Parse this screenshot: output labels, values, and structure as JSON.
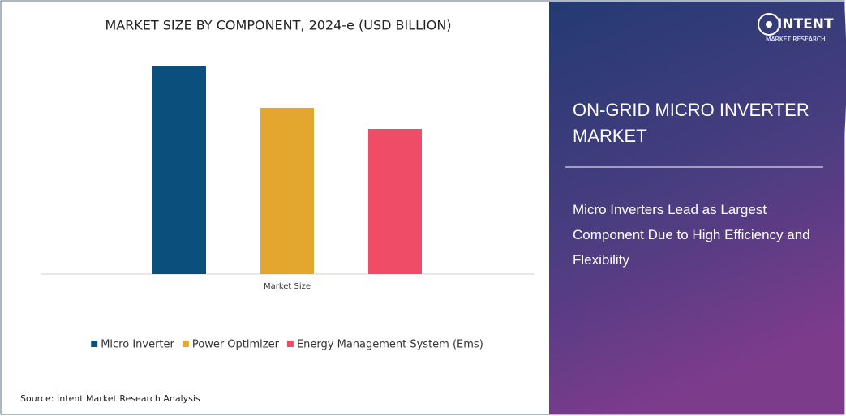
{
  "chart_data": {
    "type": "bar",
    "title": "MARKET SIZE BY COMPONENT, 2024-e (USD BILLION)",
    "categories": [
      "Market Size"
    ],
    "series": [
      {
        "name": "Micro Inverter",
        "color": "#0b4f7c",
        "values": [
          2.56
        ]
      },
      {
        "name": "Power Optimizer",
        "color": "#e3a72f",
        "values": [
          2.05
        ]
      },
      {
        "name": "Energy Management System (Ems)",
        "color": "#ef4d67",
        "values": [
          1.79
        ]
      }
    ],
    "ylim": [
      0,
      3
    ],
    "legend": "bottom",
    "source": "Source: Intent Market Research Analysis"
  },
  "panel": {
    "brand": "INTENT",
    "brand_tagline": "MARKET RESEARCH",
    "title": "ON-GRID MICRO INVERTER MARKET",
    "subtitle": "Micro Inverters Lead as Largest Component Due to High Efficiency and Flexibility"
  }
}
